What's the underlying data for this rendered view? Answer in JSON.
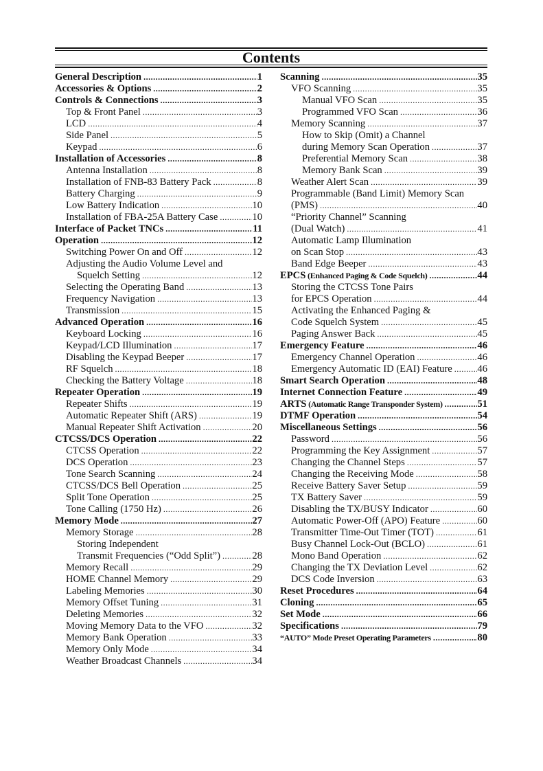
{
  "title": "Contents",
  "left": [
    {
      "t": "General Description",
      "p": "1",
      "lv": 0
    },
    {
      "t": "Accessories & Options",
      "p": "2",
      "lv": 0
    },
    {
      "t": "Controls & Connections",
      "p": "3",
      "lv": 0
    },
    {
      "t": "Top & Front Panel",
      "p": "3",
      "lv": 1
    },
    {
      "t": "LCD",
      "p": "4",
      "lv": 1
    },
    {
      "t": "Side Panel",
      "p": "5",
      "lv": 1
    },
    {
      "t": "Keypad",
      "p": "6",
      "lv": 1
    },
    {
      "t": "Installation of Accessories",
      "p": "8",
      "lv": 0
    },
    {
      "t": "Antenna Installation",
      "p": "8",
      "lv": 1
    },
    {
      "t": "Installation of FNB-83 Battery Pack",
      "p": "8",
      "lv": 1
    },
    {
      "t": "Battery Charging",
      "p": "9",
      "lv": 1
    },
    {
      "t": "Low Battery Indication",
      "p": "10",
      "lv": 1
    },
    {
      "t": "Installation of FBA-25A Battery Case",
      "p": "10",
      "lv": 1
    },
    {
      "t": "Interface of Packet TNCs",
      "p": "11",
      "lv": 0
    },
    {
      "t": "Operation",
      "p": "12",
      "lv": 0
    },
    {
      "t": "Switching Power On and Off",
      "p": "12",
      "lv": 1
    },
    {
      "t": "Adjusting the Audio Volume Level and",
      "p": "",
      "lv": 1
    },
    {
      "t": "Squelch Setting",
      "p": "12",
      "lv": 2
    },
    {
      "t": "Selecting the Operating Band",
      "p": "13",
      "lv": 1
    },
    {
      "t": "Frequency Navigation",
      "p": "13",
      "lv": 1
    },
    {
      "t": "Transmission",
      "p": "15",
      "lv": 1
    },
    {
      "t": "Advanced Operation",
      "p": "16",
      "lv": 0
    },
    {
      "t": "Keyboard Locking",
      "p": "16",
      "lv": 1
    },
    {
      "t": "Keypad/LCD Illumination",
      "p": "17",
      "lv": 1
    },
    {
      "t": "Disabling the Keypad Beeper",
      "p": "17",
      "lv": 1
    },
    {
      "t": "RF Squelch",
      "p": "18",
      "lv": 1
    },
    {
      "t": "Checking the Battery Voltage",
      "p": "18",
      "lv": 1
    },
    {
      "t": "Repeater Operation",
      "p": "19",
      "lv": 0
    },
    {
      "t": "Repeater Shifts",
      "p": "19",
      "lv": 1
    },
    {
      "t": "Automatic Repeater Shift (ARS)",
      "p": "19",
      "lv": 1
    },
    {
      "t": "Manual Repeater Shift Activation",
      "p": "20",
      "lv": 1
    },
    {
      "t": "CTCSS/DCS Operation",
      "p": "22",
      "lv": 0
    },
    {
      "t": "CTCSS Operation",
      "p": "22",
      "lv": 1
    },
    {
      "t": "DCS Operation",
      "p": "23",
      "lv": 1
    },
    {
      "t": "Tone Search Scanning",
      "p": "24",
      "lv": 1
    },
    {
      "t": "CTCSS/DCS Bell Operation",
      "p": "25",
      "lv": 1
    },
    {
      "t": "Split Tone Operation",
      "p": "25",
      "lv": 1
    },
    {
      "t": "Tone Calling (1750 Hz)",
      "p": "26",
      "lv": 1
    },
    {
      "t": "Memory Mode",
      "p": "27",
      "lv": 0
    },
    {
      "t": "Memory Storage",
      "p": "28",
      "lv": 1
    },
    {
      "t": "Storing Independent",
      "p": "",
      "lv": 2
    },
    {
      "t": "Transmit Frequencies (“Odd Split”)",
      "p": "28",
      "lv": 2
    },
    {
      "t": "Memory Recall",
      "p": "29",
      "lv": 1
    },
    {
      "t": "HOME Channel Memory",
      "p": "29",
      "lv": 1
    },
    {
      "t": "Labeling Memories",
      "p": "30",
      "lv": 1
    },
    {
      "t": "Memory Offset Tuning",
      "p": "31",
      "lv": 1
    },
    {
      "t": "Deleting Memories",
      "p": "32",
      "lv": 1
    },
    {
      "t": "Moving Memory Data to the VFO",
      "p": "32",
      "lv": 1
    },
    {
      "t": "Memory Bank Operation",
      "p": "33",
      "lv": 1
    },
    {
      "t": "Memory Only Mode",
      "p": "34",
      "lv": 1
    },
    {
      "t": "Weather Broadcast Channels",
      "p": "34",
      "lv": 1
    }
  ],
  "right": [
    {
      "t": "Scanning",
      "p": "35",
      "lv": 0
    },
    {
      "t": "VFO Scanning",
      "p": "35",
      "lv": 1
    },
    {
      "t": "Manual VFO Scan",
      "p": "35",
      "lv": 2
    },
    {
      "t": "Programmed VFO Scan",
      "p": "36",
      "lv": 2
    },
    {
      "t": "Memory Scanning",
      "p": "37",
      "lv": 1
    },
    {
      "t": "How to Skip (Omit) a Channel",
      "p": "",
      "lv": 2
    },
    {
      "t": "during Memory Scan Operation",
      "p": "37",
      "lv": 2
    },
    {
      "t": "Preferential Memory Scan",
      "p": "38",
      "lv": 2
    },
    {
      "t": "Memory Bank Scan",
      "p": "39",
      "lv": 2
    },
    {
      "t": "Weather Alert Scan",
      "p": "39",
      "lv": 1
    },
    {
      "t": "Programmable (Band Limit) Memory Scan",
      "p": "",
      "lv": 1
    },
    {
      "t": "(PMS)",
      "p": "40",
      "lv": 1
    },
    {
      "t": "“Priority Channel” Scanning",
      "p": "",
      "lv": 1
    },
    {
      "t": "(Dual Watch)",
      "p": "41",
      "lv": 1
    },
    {
      "t": "Automatic Lamp Illumination",
      "p": "",
      "lv": 1
    },
    {
      "t": "on Scan Stop",
      "p": "43",
      "lv": 1
    },
    {
      "t": "Band Edge Beeper",
      "p": "43",
      "lv": 1
    },
    {
      "t": "EPCS",
      "sub": " (Enhanced Paging & Code Squelch)",
      "p": "44",
      "lv": 0
    },
    {
      "t": "Storing the CTCSS Tone Pairs",
      "p": "",
      "lv": 1
    },
    {
      "t": "for EPCS Operation",
      "p": "44",
      "lv": 1
    },
    {
      "t": "Activating the Enhanced Paging &",
      "p": "",
      "lv": 1
    },
    {
      "t": "Code Squelch System",
      "p": "45",
      "lv": 1
    },
    {
      "t": "Paging Answer Back",
      "p": "45",
      "lv": 1
    },
    {
      "t": "Emergency Feature",
      "p": "46",
      "lv": 0
    },
    {
      "t": "Emergency Channel Operation",
      "p": "46",
      "lv": 1
    },
    {
      "t": "Emergency Automatic ID (EAI) Feature",
      "p": "46",
      "lv": 1
    },
    {
      "t": "Smart Search Operation",
      "p": "48",
      "lv": 0
    },
    {
      "t": "Internet Connection Feature",
      "p": "49",
      "lv": 0
    },
    {
      "t": "ARTS",
      "sub": " (Automatic Range Transponder System)",
      "p": "51",
      "lv": 0
    },
    {
      "t": "DTMF Operation",
      "p": "54",
      "lv": 0
    },
    {
      "t": "Miscellaneous Settings",
      "p": "56",
      "lv": 0
    },
    {
      "t": "Password",
      "p": "56",
      "lv": 1
    },
    {
      "t": "Programming the Key Assignment",
      "p": "57",
      "lv": 1
    },
    {
      "t": "Changing the Channel Steps",
      "p": "57",
      "lv": 1
    },
    {
      "t": "Changing the Receiving Mode",
      "p": "58",
      "lv": 1
    },
    {
      "t": "Receive Battery Saver Setup",
      "p": "59",
      "lv": 1
    },
    {
      "t": "TX Battery Saver",
      "p": "59",
      "lv": 1
    },
    {
      "t": "Disabling the TX/BUSY Indicator",
      "p": "60",
      "lv": 1
    },
    {
      "t": "Automatic Power-Off (APO) Feature",
      "p": "60",
      "lv": 1
    },
    {
      "t": "Transmitter Time-Out Timer (TOT)",
      "p": "61",
      "lv": 1
    },
    {
      "t": "Busy Channel Lock-Out (BCLO)",
      "p": "61",
      "lv": 1
    },
    {
      "t": "Mono Band Operation",
      "p": "62",
      "lv": 1
    },
    {
      "t": "Changing the TX Deviation Level",
      "p": "62",
      "lv": 1
    },
    {
      "t": "DCS Code Inversion",
      "p": "63",
      "lv": 1
    },
    {
      "t": "Reset Procedures",
      "p": "64",
      "lv": 0
    },
    {
      "t": "Cloning",
      "p": "65",
      "lv": 0
    },
    {
      "t": "Set Mode",
      "p": "66",
      "lv": 0
    },
    {
      "t": "Specifications",
      "p": "79",
      "lv": 0
    },
    {
      "t": "",
      "sub": "“AUTO” Mode Preset Operating Parameters",
      "p": "80",
      "lv": 0
    }
  ]
}
